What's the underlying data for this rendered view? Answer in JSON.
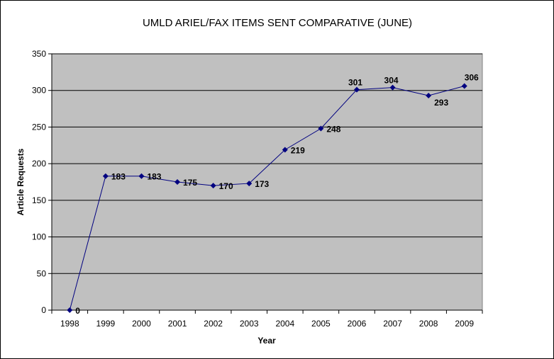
{
  "chart_data": {
    "type": "line",
    "title": "UMLD ARIEL/FAX ITEMS SENT COMPARATIVE (JUNE)",
    "xlabel": "Year",
    "ylabel": "Article Requests",
    "categories": [
      "1998",
      "1999",
      "2000",
      "2001",
      "2002",
      "2003",
      "2004",
      "2005",
      "2006",
      "2007",
      "2008",
      "2009"
    ],
    "values": [
      0,
      183,
      183,
      175,
      170,
      173,
      219,
      248,
      301,
      304,
      293,
      306
    ],
    "ylim": [
      0,
      350
    ],
    "yticks": [
      0,
      50,
      100,
      150,
      200,
      250,
      300,
      350
    ],
    "grid": true,
    "legend": "none",
    "data_labels": true,
    "colors": {
      "line": "#000080",
      "plot_background": "#C0C0C0",
      "gridline": "#000000"
    }
  }
}
